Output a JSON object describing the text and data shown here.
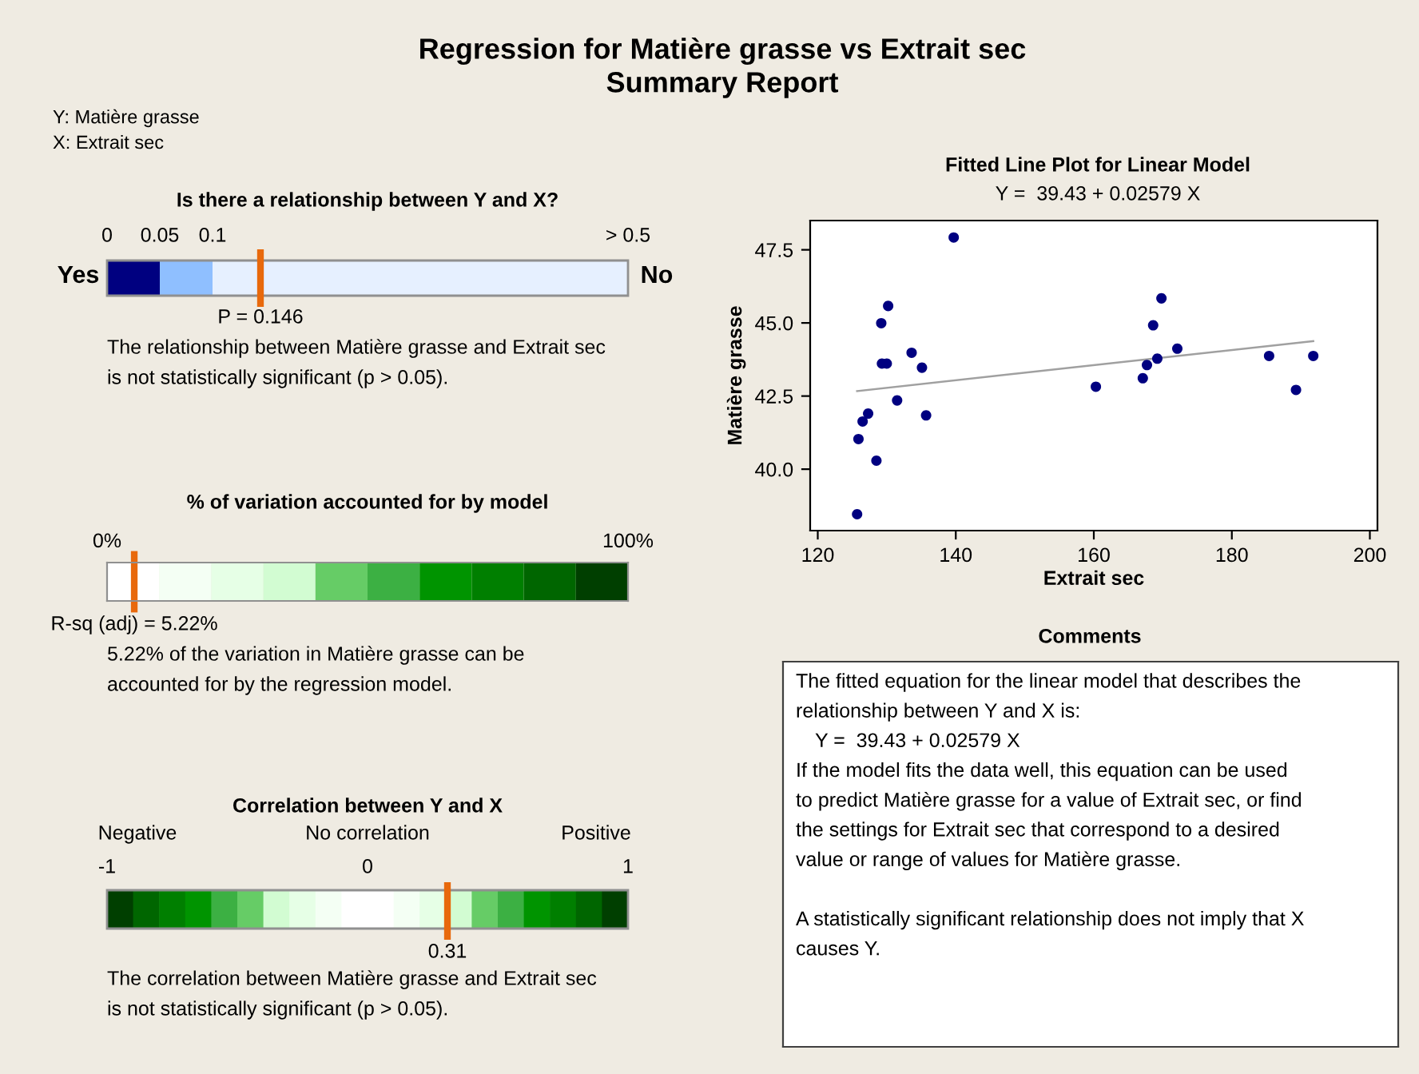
{
  "chart_data": [
    {
      "type": "other",
      "title": "Regression for Matière grasse vs Extrait sec",
      "subtitle": "Summary Report",
      "annotations": [
        "Y: Matière grasse",
        "X: Extrait sec"
      ]
    },
    {
      "type": "other",
      "title": "Is there a relationship between Y and X?",
      "annotations": [
        "0",
        "0.05",
        "0.1",
        "> 0.5",
        "Yes",
        "No",
        "P = 0.146",
        "The relationship between Matière grasse and Extrait sec",
        "is not statistically significant (p > 0.05)."
      ]
    },
    {
      "type": "bar",
      "orientation": "horizontal",
      "stacked": true,
      "title": "% of variation accounted for by model",
      "categories": [
        null
      ],
      "tick_labels": "x",
      "xlim": [
        0,
        100
      ],
      "xticks": [
        {
          "value": 0,
          "label": "0%"
        },
        {
          "value": 100,
          "label": "100%"
        }
      ],
      "series": [
        {
          "color": "#ffffff",
          "values": [
            10
          ]
        },
        {
          "color": "#f4fff4",
          "values": [
            10
          ]
        },
        {
          "color": "#e6ffe6",
          "values": [
            10
          ]
        },
        {
          "color": "#d2fcd2",
          "values": [
            10
          ]
        },
        {
          "color": "#66cc66",
          "values": [
            10
          ]
        },
        {
          "color": "#3cb043",
          "values": [
            10
          ]
        },
        {
          "color": "#009400",
          "values": [
            10
          ]
        },
        {
          "color": "#007f00",
          "values": [
            10
          ]
        },
        {
          "color": "#006600",
          "values": [
            10
          ]
        },
        {
          "color": "#003f00",
          "values": [
            10
          ]
        }
      ],
      "ref_lines": [
        {
          "axis": "x",
          "value": 5.22,
          "label": "R-sq (adj) = 5.22%",
          "color": "#e8690c"
        }
      ],
      "annotations": [
        "5.22% of the variation in Matière grasse can be",
        "accounted for by the regression model."
      ]
    },
    {
      "type": "other",
      "title": "Correlation between Y and X",
      "annotations": [
        "Negative",
        "No correlation",
        "Positive",
        "-1",
        "0",
        "1",
        "0.31",
        "The correlation between Matière grasse and Extrait sec",
        "is not statistically significant (p > 0.05)."
      ]
    },
    {
      "type": "scatter",
      "title": "Fitted Line Plot for Linear Model",
      "subtitle": "Y =  39.43 + 0.02579 X",
      "xlabel": "Extrait sec",
      "ylabel": "Matière grasse",
      "xlim": [
        118.9,
        201.1
      ],
      "ylim": [
        37.9,
        48.5
      ],
      "xticks": [
        120,
        140,
        160,
        180,
        200
      ],
      "yticks": [
        {
          "value": 40,
          "label": "40.0"
        },
        {
          "value": 42.5,
          "label": "42.5"
        },
        {
          "value": 45,
          "label": "45.0"
        },
        {
          "value": 47.5,
          "label": "47.5"
        }
      ],
      "series": [
        {
          "type": "scatter",
          "color": "#000080",
          "marker": "circle",
          "x": [
            139.7,
            130.2,
            129.2,
            129.3,
            130.0,
            133.6,
            135.1,
            131.5,
            135.7,
            127.3,
            126.5,
            125.9,
            128.5,
            125.7,
            160.3,
            167.1,
            167.7,
            169.2,
            168.6,
            169.8,
            172.1,
            185.4,
            189.3,
            191.8
          ],
          "values": [
            47.92,
            45.58,
            44.99,
            43.61,
            43.61,
            43.98,
            43.47,
            42.35,
            41.84,
            41.9,
            41.63,
            41.03,
            40.29,
            38.46,
            42.82,
            43.11,
            43.56,
            43.78,
            44.92,
            45.84,
            44.12,
            43.87,
            42.71,
            43.87
          ]
        },
        {
          "type": "line",
          "color": "#a0a0a0",
          "x": [
            125.7,
            191.8
          ],
          "values": [
            42.67,
            44.38
          ]
        }
      ]
    },
    {
      "type": "other",
      "title": "Comments",
      "annotations": [
        "The fitted equation for the linear model that describes the",
        "relationship between Y and X is:",
        "Y =  39.43 + 0.02579 X",
        "If the model fits the data well, this equation can be used",
        "to predict Matière grasse for a value of Extrait sec, or find",
        "the settings for Extrait sec that correspond to a desired",
        "value or range of values for Matière grasse.",
        "A statistically significant relationship does not imply that X",
        "causes Y."
      ]
    }
  ]
}
